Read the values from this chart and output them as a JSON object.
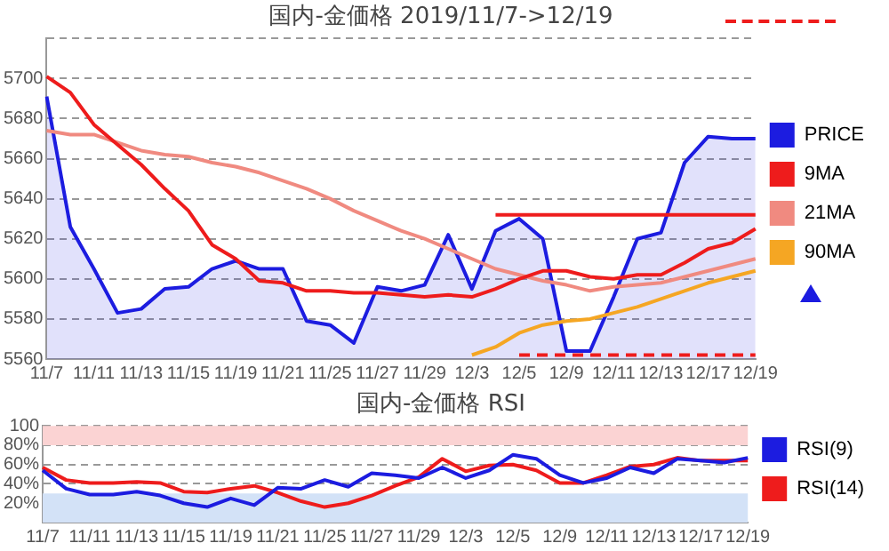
{
  "chart_data": [
    {
      "type": "line",
      "title": "国内-金価格 2019/11/7->12/19",
      "categories": [
        "11/7",
        null,
        "11/11",
        null,
        "11/13",
        null,
        "11/15",
        null,
        "11/19",
        null,
        "11/21",
        null,
        "11/25",
        null,
        "11/27",
        null,
        "11/29",
        null,
        "12/3",
        null,
        "12/5",
        null,
        "12/9",
        null,
        "12/11",
        null,
        "12/13",
        null,
        "12/17",
        null,
        "12/19"
      ],
      "ylim": [
        5560,
        5720
      ],
      "yticks": [
        5560,
        5580,
        5600,
        5620,
        5640,
        5660,
        5680,
        5700,
        {
          "value": 5720,
          "label": null
        }
      ],
      "grid": "y",
      "legend": "right",
      "marker": "none",
      "series": [
        {
          "name": "PRICE",
          "type": "area",
          "color": "#1c1ce0",
          "values": [
            5691,
            5626,
            5605,
            5583,
            5585,
            5595,
            5596,
            5605,
            5609,
            5605,
            5605,
            5579,
            5577,
            5568,
            5596,
            5594,
            5597,
            5622,
            5595,
            5624,
            5630,
            5620,
            5564,
            5564,
            5591,
            5620,
            5623,
            5658,
            5671,
            5670,
            5670
          ]
        },
        {
          "name": "9MA",
          "color": "#ee1c1c",
          "values": [
            5701,
            5693,
            5677,
            5667,
            5657,
            5645,
            5634,
            5617,
            5610,
            5599,
            5598,
            5594,
            5594,
            5593,
            5593,
            5592,
            5591,
            5592,
            5591,
            5595,
            5600,
            5604,
            5604,
            5601,
            5600,
            5602,
            5602,
            5608,
            5615,
            5618,
            5625
          ]
        },
        {
          "name": "21MA",
          "color": "#f08a80",
          "values": [
            5674,
            5672,
            5672,
            5668,
            5664,
            5662,
            5661,
            5658,
            5656,
            5653,
            5649,
            5645,
            5640,
            5634,
            5629,
            5624,
            5620,
            5615,
            5610,
            5605,
            5602,
            5599,
            5597,
            5594,
            5596,
            5597,
            5598,
            5601,
            5604,
            5607,
            5610
          ]
        },
        {
          "name": "90MA",
          "color": "#f5a623",
          "values": [
            null,
            null,
            null,
            null,
            null,
            null,
            null,
            null,
            null,
            null,
            null,
            null,
            null,
            null,
            null,
            null,
            null,
            null,
            5562,
            5566,
            5573,
            5577,
            5579,
            5580,
            5583,
            5586,
            5590,
            5594,
            5598,
            5601,
            5604
          ]
        },
        {
          "type": "line",
          "color": "#ee1c1c",
          "values": [
            null,
            null,
            null,
            null,
            null,
            null,
            null,
            null,
            null,
            null,
            null,
            null,
            null,
            null,
            null,
            null,
            null,
            null,
            null,
            5632,
            5632,
            5632,
            5632,
            5632,
            5632,
            5632,
            5632,
            5632,
            5632,
            5632,
            5632
          ]
        },
        {
          "type": "line",
          "color": "#ee1c1c",
          "line_style": "dashed",
          "values": [
            null,
            null,
            null,
            null,
            null,
            null,
            null,
            null,
            null,
            null,
            null,
            null,
            null,
            null,
            null,
            null,
            null,
            null,
            null,
            null,
            5562,
            5562,
            5562,
            5562,
            5562,
            5562,
            5562,
            5562,
            5562,
            5562,
            5562
          ]
        }
      ]
    },
    {
      "type": "line",
      "title": "国内-金価格 RSI",
      "categories": [
        "11/7",
        null,
        "11/11",
        null,
        "11/13",
        null,
        "11/15",
        null,
        "11/19",
        null,
        "11/21",
        null,
        "11/25",
        null,
        "11/27",
        null,
        "11/29",
        null,
        "12/3",
        null,
        "12/5",
        null,
        "12/9",
        null,
        "12/11",
        null,
        "12/13",
        null,
        "12/17",
        null,
        "12/19"
      ],
      "ylim": [
        0,
        100
      ],
      "yticks": [
        {
          "value": 20,
          "label": "20%"
        },
        {
          "value": 40,
          "label": "40%"
        },
        {
          "value": 60,
          "label": "60%"
        },
        {
          "value": 80,
          "label": "80%"
        },
        100
      ],
      "grid": "y",
      "legend": "right",
      "marker": "none",
      "bands": [
        {
          "axis": "y",
          "from": 80,
          "to": 100,
          "color": "#fbd3d3"
        },
        {
          "axis": "y",
          "from": 0,
          "to": 30,
          "color": "#d3e2f7"
        }
      ],
      "series": [
        {
          "name": "RSI(9)",
          "color": "#1c1ce0",
          "values": [
            54,
            35,
            29,
            29,
            32,
            28,
            20,
            16,
            25,
            18,
            36,
            35,
            44,
            37,
            51,
            49,
            46,
            57,
            46,
            54,
            70,
            66,
            49,
            41,
            46,
            57,
            51,
            66,
            64,
            62,
            67
          ]
        },
        {
          "name": "RSI(14)",
          "color": "#ee1c1c",
          "values": [
            57,
            44,
            41,
            41,
            42,
            41,
            32,
            31,
            35,
            38,
            31,
            22,
            16,
            20,
            28,
            38,
            47,
            66,
            53,
            59,
            60,
            54,
            41,
            41,
            49,
            58,
            60,
            67,
            64,
            64,
            64
          ]
        }
      ]
    }
  ]
}
